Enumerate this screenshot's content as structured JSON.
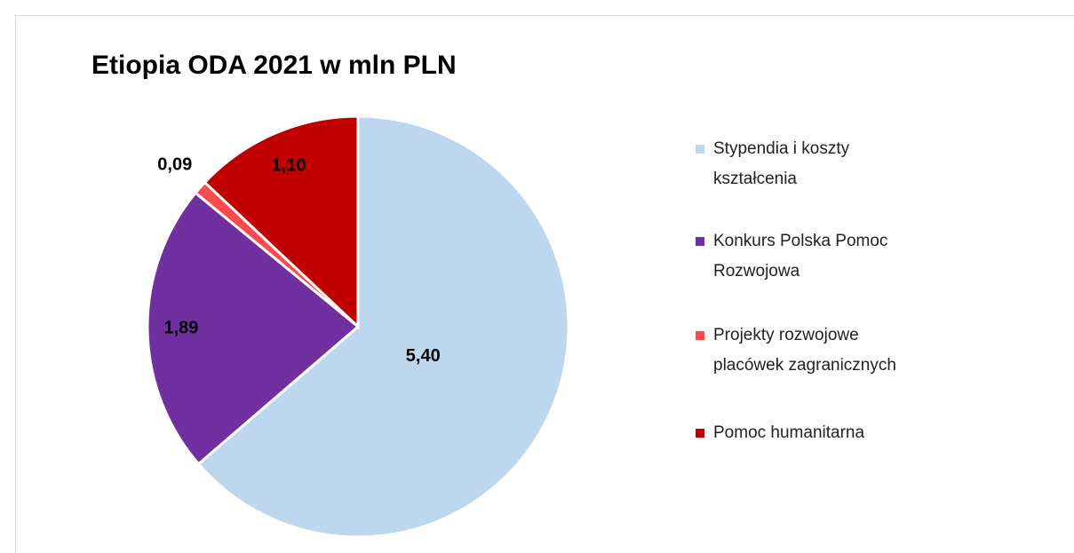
{
  "chart_data": {
    "type": "pie",
    "title": "Etiopia ODA 2021 w mln PLN",
    "categories": [
      "Stypendia i koszty kształcenia",
      "Konkurs Polska Pomoc Rozwojowa",
      "Projekty rozwojowe placówek zagranicznych",
      "Pomoc humanitarna"
    ],
    "values": [
      5.4,
      1.89,
      0.09,
      1.1
    ],
    "value_labels": [
      "5,40",
      "1,89",
      "0,09",
      "1,10"
    ],
    "colors": [
      "#bdd7ee",
      "#7030a0",
      "#ff4b4b",
      "#c00000"
    ],
    "legend": "right"
  }
}
